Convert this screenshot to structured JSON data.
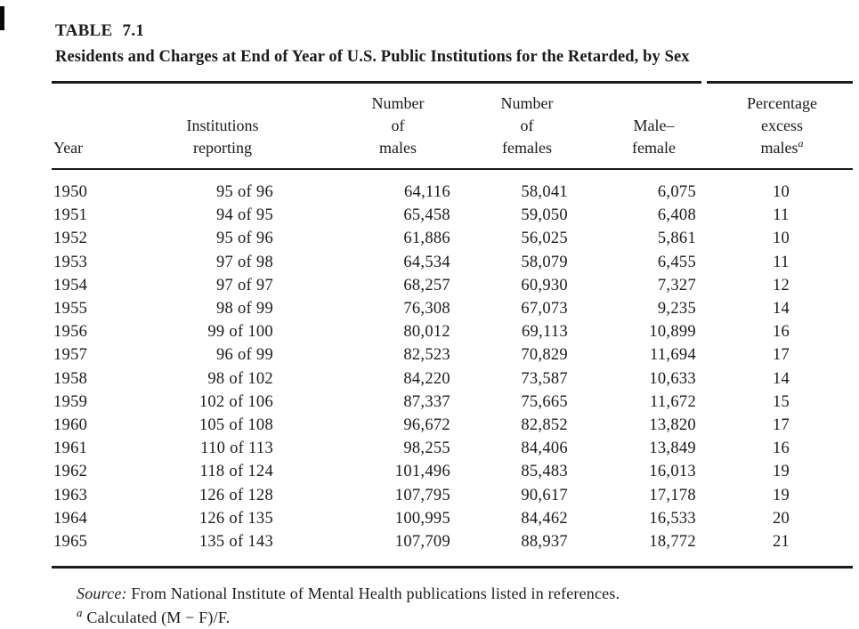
{
  "page": {
    "background": "#ffffff",
    "text_color": "#1b1b1b"
  },
  "heading": {
    "label": "TABLE 7.1",
    "title": "Residents and Charges at End of Year of U.S. Public Institutions for the Retarded, by Sex"
  },
  "table": {
    "columns": [
      {
        "id": "year",
        "lines": [
          "Year"
        ]
      },
      {
        "id": "institutions-reporting",
        "lines": [
          "Institutions",
          "reporting"
        ]
      },
      {
        "id": "number-of-males",
        "lines": [
          "Number",
          "of",
          "males"
        ]
      },
      {
        "id": "number-of-females",
        "lines": [
          "Number",
          "of",
          "females"
        ]
      },
      {
        "id": "male-female",
        "lines": [
          "Male–",
          "female"
        ]
      },
      {
        "id": "percentage-excess-males",
        "lines": [
          "Percentage",
          "excess",
          "males"
        ],
        "footnote_marker": "a"
      }
    ],
    "rows": [
      [
        "1950",
        "95 of 96",
        "64,116",
        "58,041",
        "6,075",
        "10"
      ],
      [
        "1951",
        "94 of 95",
        "65,458",
        "59,050",
        "6,408",
        "11"
      ],
      [
        "1952",
        "95 of 96",
        "61,886",
        "56,025",
        "5,861",
        "10"
      ],
      [
        "1953",
        "97 of 98",
        "64,534",
        "58,079",
        "6,455",
        "11"
      ],
      [
        "1954",
        "97 of 97",
        "68,257",
        "60,930",
        "7,327",
        "12"
      ],
      [
        "1955",
        "98 of 99",
        "76,308",
        "67,073",
        "9,235",
        "14"
      ],
      [
        "1956",
        "99 of 100",
        "80,012",
        "69,113",
        "10,899",
        "16"
      ],
      [
        "1957",
        "96 of 99",
        "82,523",
        "70,829",
        "11,694",
        "17"
      ],
      [
        "1958",
        "98 of 102",
        "84,220",
        "73,587",
        "10,633",
        "14"
      ],
      [
        "1959",
        "102 of 106",
        "87,337",
        "75,665",
        "11,672",
        "15"
      ],
      [
        "1960",
        "105 of 108",
        "96,672",
        "82,852",
        "13,820",
        "17"
      ],
      [
        "1961",
        "110 of 113",
        "98,255",
        "84,406",
        "13,849",
        "16"
      ],
      [
        "1962",
        "118 of 124",
        "101,496",
        "85,483",
        "16,013",
        "19"
      ],
      [
        "1963",
        "126 of 128",
        "107,795",
        "90,617",
        "17,178",
        "19"
      ],
      [
        "1964",
        "126 of 135",
        "100,995",
        "84,462",
        "16,533",
        "20"
      ],
      [
        "1965",
        "135 of 143",
        "107,709",
        "88,937",
        "18,772",
        "21"
      ]
    ]
  },
  "notes": {
    "source_label": "Source:",
    "source_text": " From National Institute of Mental Health publications listed in references.",
    "footnote_marker": "a",
    "footnote_text": " Calculated (M − F)/F."
  }
}
